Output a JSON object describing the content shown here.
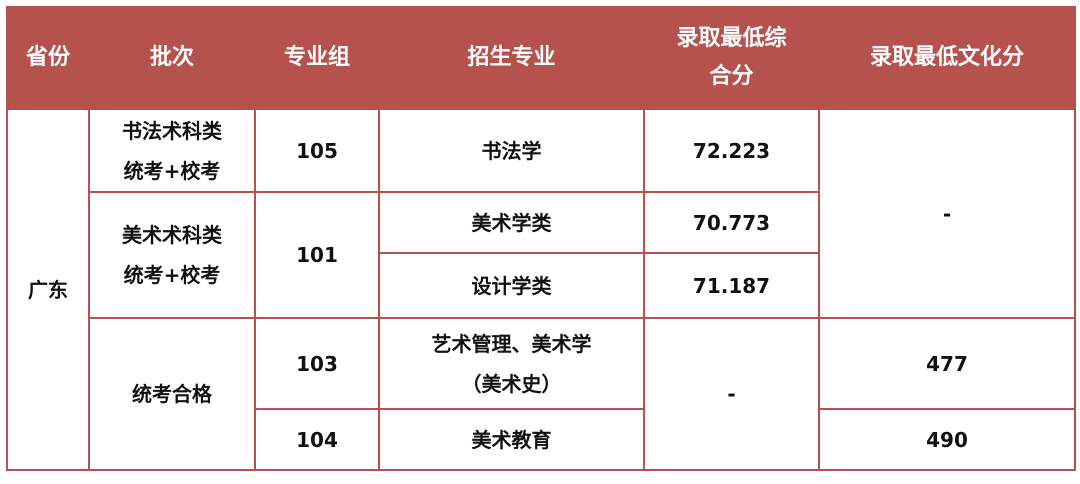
{
  "headers": [
    "省份",
    "批次",
    "专业组",
    "招生专业",
    "录取最低综合分",
    "录取最低文化分"
  ],
  "province": "广东",
  "rows": {
    "r1": {
      "batch_line1": "书法术科类",
      "batch_line2": "统考+校考",
      "group": "105",
      "major": "书法学",
      "composite": "72.223"
    },
    "r2": {
      "batch_line1": "美术术科类",
      "batch_line2": "统考+校考",
      "group": "101",
      "major": "美术学类",
      "composite": "70.773"
    },
    "r3": {
      "major": "设计学类",
      "composite": "71.187"
    },
    "culture_top": "-",
    "r4": {
      "batch": "统考合格",
      "group": "103",
      "major_line1": "艺术管理、美术学",
      "major_line2": "（美术史）",
      "composite": "-",
      "culture": "477"
    },
    "r5": {
      "group": "104",
      "major": "美术教育",
      "culture": "490"
    }
  },
  "colors": {
    "header_bg": "#b5524e",
    "border": "#b5524e"
  }
}
